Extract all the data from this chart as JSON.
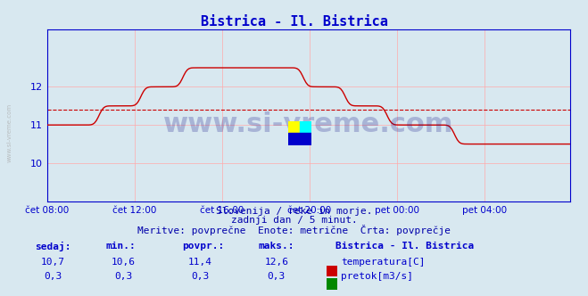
{
  "title": "Bistrica - Il. Bistrica",
  "title_color": "#0000cc",
  "bg_color": "#d8e8f0",
  "grid_color": "#ffaaaa",
  "axis_color": "#0000cc",
  "temp_color": "#cc0000",
  "flow_color": "#008800",
  "avg_color": "#cc0000",
  "ylim": [
    9.0,
    13.5
  ],
  "yticks": [
    10,
    11,
    12
  ],
  "xlabel_color": "#0000cc",
  "xtick_labels": [
    "čet 08:00",
    "čet 12:00",
    "čet 16:00",
    "čet 20:00",
    "pet 00:00",
    "pet 04:00"
  ],
  "footer_line1": "Slovenija / reke in morje.",
  "footer_line2": "zadnji dan / 5 minut.",
  "footer_line3": "Meritve: povprečne  Enote: metrične  Črta: povprečje",
  "footer_color": "#0000aa",
  "label_color": "#0000cc",
  "stats_headers": [
    "sedaj:",
    "min.:",
    "povpr.:",
    "maks.:"
  ],
  "stats_temp": [
    "10,7",
    "10,6",
    "11,4",
    "12,6"
  ],
  "stats_flow": [
    "0,3",
    "0,3",
    "0,3",
    "0,3"
  ],
  "legend_title": "Bistrica - Il. Bistrica",
  "legend_items": [
    "temperatura[C]",
    "pretok[m3/s]"
  ],
  "legend_colors": [
    "#cc0000",
    "#008800"
  ],
  "temp_avg": 11.4,
  "flow_avg": 0.3
}
